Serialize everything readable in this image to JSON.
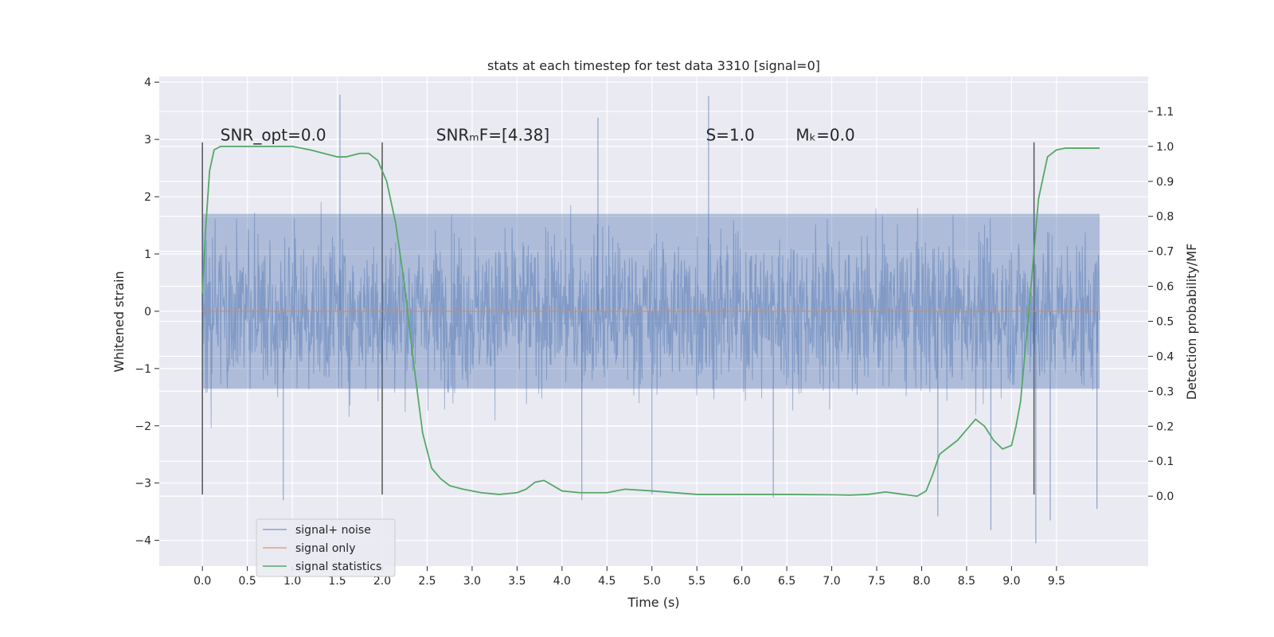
{
  "chart_data": {
    "type": "line",
    "title": "stats at each timestep for test data 3310 [signal=0]",
    "xlabel": "Time (s)",
    "ylabel": "Whitened strain",
    "ylabel_right": "Detection probability/MF",
    "xlim": [
      -0.48,
      10.52
    ],
    "ylim": [
      -4.45,
      4.1
    ],
    "ylim_right": [
      -0.2,
      1.2
    ],
    "x_ticks": [
      0.0,
      0.5,
      1.0,
      1.5,
      2.0,
      2.5,
      3.0,
      3.5,
      4.0,
      4.5,
      5.0,
      5.5,
      6.0,
      6.5,
      7.0,
      7.5,
      8.0,
      8.5,
      9.0,
      9.5
    ],
    "x_tick_labels": [
      "0.0",
      "0.5",
      "1.0",
      "1.5",
      "2.0",
      "2.5",
      "3.0",
      "3.5",
      "4.0",
      "4.5",
      "5.0",
      "5.5",
      "6.0",
      "6.5",
      "7.0",
      "7.5",
      "8.0",
      "8.5",
      "9.0",
      "9.5"
    ],
    "y_ticks": [
      4,
      3,
      2,
      1,
      0,
      -1,
      -2,
      -3,
      -4
    ],
    "y_tick_labels": [
      "4",
      "3",
      "2",
      "1",
      "0",
      "−1",
      "−2",
      "−3",
      "−4"
    ],
    "y_right_ticks": [
      1.1,
      1.0,
      0.9,
      0.8,
      0.7,
      0.6,
      0.5,
      0.4,
      0.3,
      0.2,
      0.1,
      0.0
    ],
    "y_right_tick_labels": [
      "1.1",
      "1.0",
      "0.9",
      "0.8",
      "0.7",
      "0.6",
      "0.5",
      "0.4",
      "0.3",
      "0.2",
      "0.1",
      "0.0"
    ],
    "grid": true,
    "legend_position": "lower-left",
    "colors": {
      "background": "#eaeaf2",
      "grid": "#ffffff",
      "noise": "#4c72b0",
      "signal": "#dd8452",
      "stats": "#55a868",
      "markers": "#555555"
    },
    "series": [
      {
        "name": "signal+ noise",
        "axis": "left",
        "style": "dense-noise",
        "x_range": [
          0.0,
          9.98
        ],
        "core_band": [
          -1.35,
          1.7
        ],
        "envelope": [
          -2.6,
          2.7
        ],
        "extremes": [
          {
            "x": 1.53,
            "y": 3.78
          },
          {
            "x": 5.63,
            "y": 3.76
          },
          {
            "x": 4.4,
            "y": 3.38
          },
          {
            "x": 9.27,
            "y": -4.05
          },
          {
            "x": 8.77,
            "y": -3.82
          },
          {
            "x": 9.43,
            "y": -3.65
          },
          {
            "x": 8.18,
            "y": -3.58
          },
          {
            "x": 4.22,
            "y": -3.3
          },
          {
            "x": 0.9,
            "y": -3.3
          },
          {
            "x": 6.35,
            "y": -3.25
          },
          {
            "x": 5.0,
            "y": -3.2
          },
          {
            "x": 9.95,
            "y": -3.45
          }
        ]
      },
      {
        "name": "signal only",
        "axis": "left",
        "x": [
          0.0,
          9.98
        ],
        "y": [
          0.0,
          0.0
        ]
      },
      {
        "name": "signal statistics",
        "axis": "right",
        "x": [
          0.0,
          0.04,
          0.08,
          0.13,
          0.2,
          0.3,
          0.5,
          0.8,
          1.0,
          1.2,
          1.35,
          1.5,
          1.6,
          1.75,
          1.85,
          1.95,
          2.05,
          2.15,
          2.25,
          2.35,
          2.45,
          2.55,
          2.65,
          2.75,
          2.9,
          3.1,
          3.3,
          3.5,
          3.6,
          3.7,
          3.8,
          3.9,
          4.0,
          4.2,
          4.5,
          4.7,
          5.0,
          5.5,
          6.0,
          6.5,
          7.0,
          7.2,
          7.4,
          7.6,
          7.8,
          7.95,
          8.05,
          8.12,
          8.2,
          8.3,
          8.4,
          8.5,
          8.6,
          8.7,
          8.8,
          8.9,
          9.0,
          9.05,
          9.1,
          9.2,
          9.3,
          9.4,
          9.5,
          9.6,
          9.8,
          9.98
        ],
        "y": [
          0.58,
          0.78,
          0.93,
          0.99,
          1.0,
          1.0,
          1.0,
          1.0,
          1.0,
          0.99,
          0.98,
          0.97,
          0.97,
          0.98,
          0.98,
          0.96,
          0.9,
          0.78,
          0.6,
          0.38,
          0.18,
          0.08,
          0.05,
          0.03,
          0.02,
          0.01,
          0.005,
          0.01,
          0.02,
          0.04,
          0.045,
          0.03,
          0.015,
          0.01,
          0.01,
          0.02,
          0.015,
          0.005,
          0.005,
          0.005,
          0.004,
          0.003,
          0.005,
          0.012,
          0.005,
          0.0,
          0.015,
          0.06,
          0.12,
          0.14,
          0.16,
          0.19,
          0.22,
          0.2,
          0.16,
          0.135,
          0.145,
          0.2,
          0.27,
          0.55,
          0.85,
          0.97,
          0.99,
          0.995,
          0.995,
          0.995
        ]
      }
    ],
    "vertical_markers": [
      {
        "x": 0.0,
        "y_range": [
          -3.2,
          2.95
        ]
      },
      {
        "x": 2.0,
        "y_range": [
          -3.2,
          2.95
        ]
      },
      {
        "x": 9.25,
        "y_range": [
          -3.2,
          2.95
        ]
      }
    ],
    "annotations": [
      {
        "id": "snr-opt",
        "text": "SNR_opt=0.0",
        "x": 0.2,
        "y": 2.95
      },
      {
        "id": "snr-mf",
        "text": "SNRₘF=[4.38]",
        "x": 2.6,
        "y": 2.95
      },
      {
        "id": "s-value",
        "text": "S=1.0",
        "x": 5.6,
        "y": 2.95
      },
      {
        "id": "mc-value",
        "text": "Mₖ=0.0",
        "x": 6.6,
        "y": 2.95
      }
    ]
  }
}
